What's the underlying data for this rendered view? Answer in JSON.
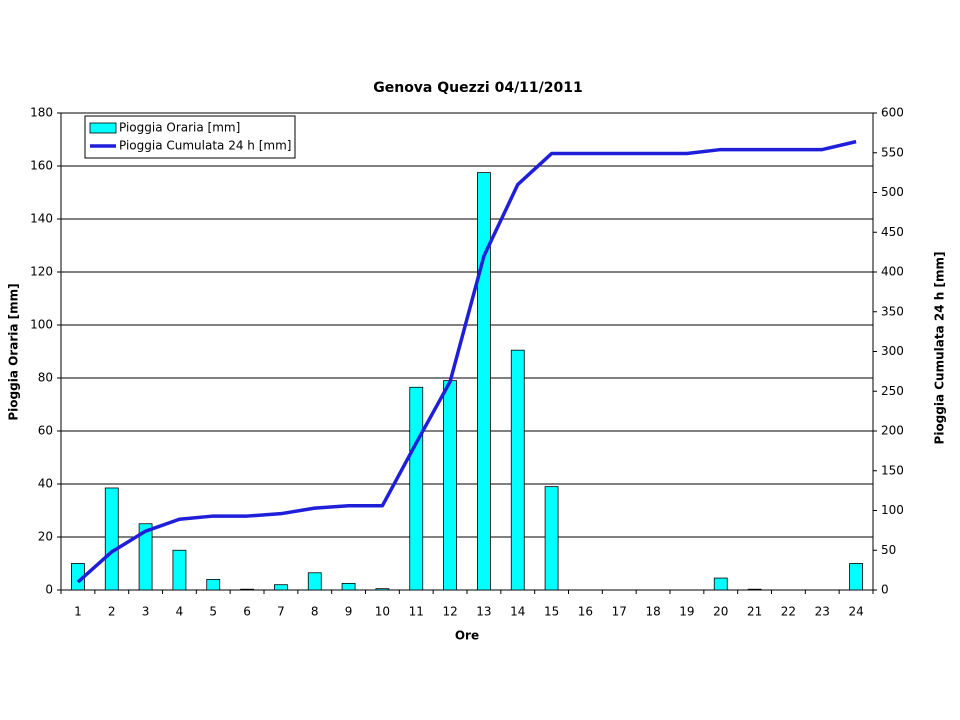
{
  "chart_data": {
    "type": "bar",
    "title": "Genova Quezzi 04/11/2011",
    "x_label": "Ore",
    "y_label": "Pioggia Oraria [mm]",
    "y2_label": "Pioggia Cumulata 24 h [mm]",
    "categories": [
      1,
      2,
      3,
      4,
      5,
      6,
      7,
      8,
      9,
      10,
      11,
      12,
      13,
      14,
      15,
      16,
      17,
      18,
      19,
      20,
      21,
      22,
      23,
      24
    ],
    "series": [
      {
        "name": "Pioggia Oraria [mm]",
        "type": "bar",
        "color": "#00ffff",
        "values": [
          10,
          38.5,
          25,
          15,
          4,
          0.3,
          2,
          6.5,
          2.5,
          0.5,
          76.5,
          79,
          157.5,
          90.5,
          39,
          0,
          0,
          0,
          0,
          4.5,
          0.3,
          0,
          0,
          10
        ]
      },
      {
        "name": "Pioggia Cumulata 24 h [mm]",
        "type": "line",
        "color": "#1f1fd9",
        "axis": "y2",
        "values": [
          10,
          48,
          74,
          89,
          93,
          93,
          96,
          103,
          106,
          106,
          185,
          262,
          420,
          510,
          549,
          549,
          549,
          549,
          549,
          554,
          554,
          554,
          554,
          564
        ]
      }
    ],
    "ylim": [
      0,
      180
    ],
    "yticks": [
      0,
      20,
      40,
      60,
      80,
      100,
      120,
      140,
      160,
      180
    ],
    "y2lim": [
      0,
      600
    ],
    "y2ticks": [
      0,
      50,
      100,
      150,
      200,
      250,
      300,
      350,
      400,
      450,
      500,
      550,
      600
    ],
    "grid": true
  }
}
